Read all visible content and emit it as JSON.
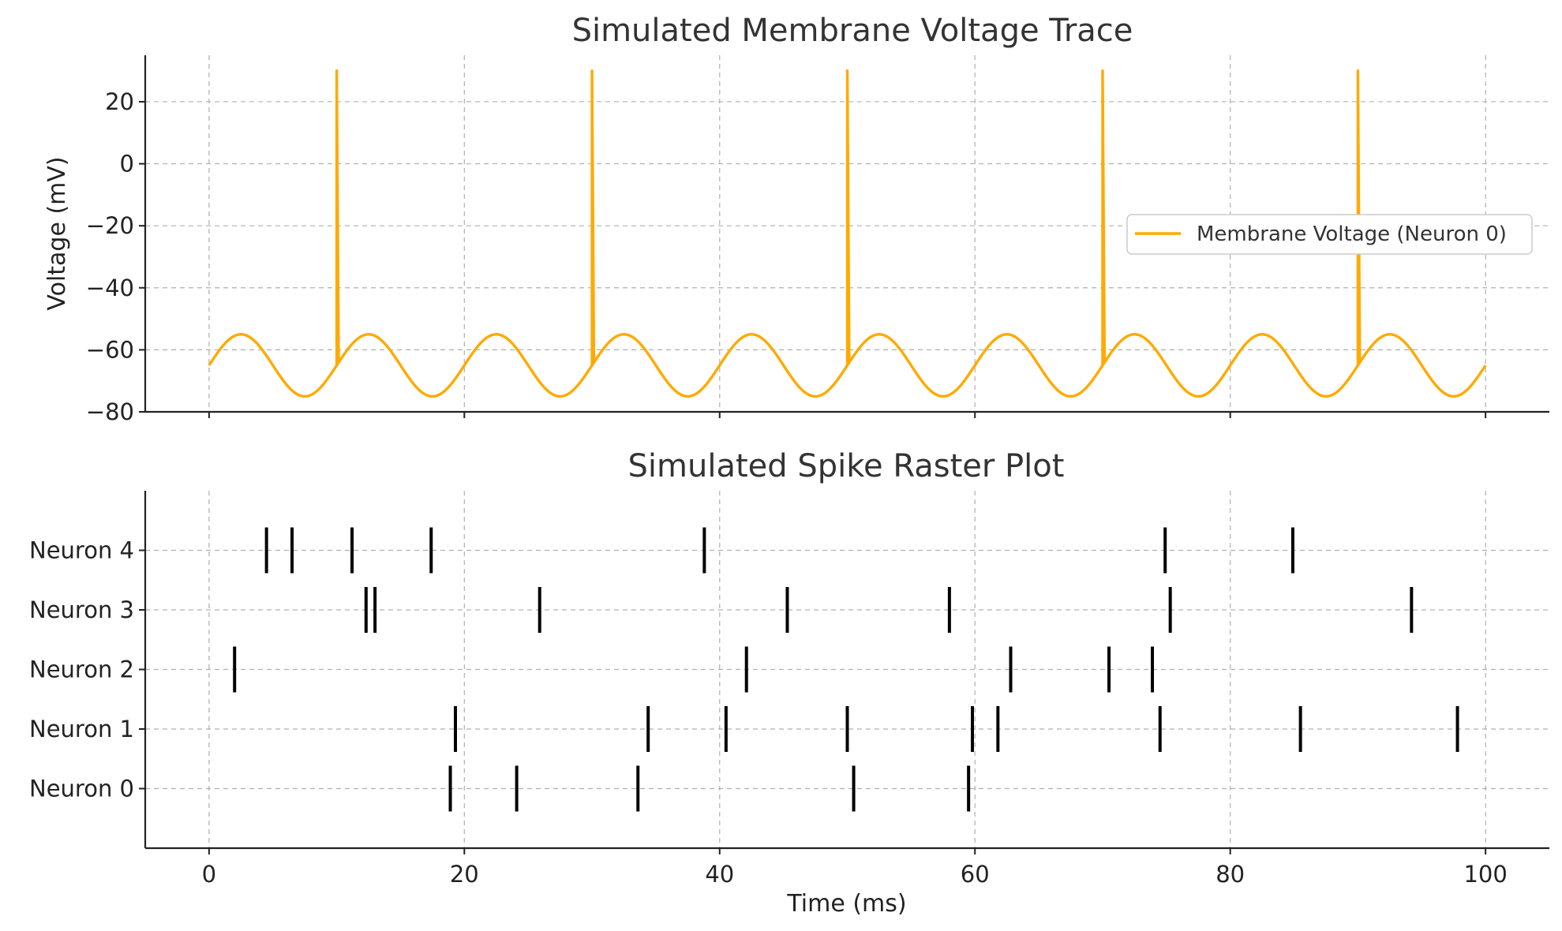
{
  "chart_data": [
    {
      "type": "line",
      "title": "Simulated Membrane Voltage Trace",
      "xlabel": "",
      "ylabel": "Voltage (mV)",
      "xlim": [
        -5,
        105
      ],
      "ylim": [
        -80,
        35
      ],
      "xticks": [
        0,
        20,
        40,
        60,
        80,
        100
      ],
      "yticks": [
        -80,
        -60,
        -40,
        -20,
        0,
        20
      ],
      "ytick_labels": [
        "−80",
        "−60",
        "−40",
        "−20",
        "0",
        "20"
      ],
      "x_tick_labels_shown": false,
      "grid": true,
      "legend_position": "center-right",
      "series": [
        {
          "name": "Membrane Voltage (Neuron 0)",
          "color": "#FFAA00",
          "model": {
            "baseline": -65,
            "amplitude": 10,
            "period_ms": 10,
            "spike_times_ms": [
              10,
              30,
              50,
              70,
              90
            ],
            "spike_peak_mv": 30
          },
          "x": [
            0,
            2.5,
            5,
            7.5,
            10,
            10,
            10.2,
            12.5,
            15,
            17.5,
            20,
            22.5,
            25,
            27.5,
            30,
            30,
            30.2,
            32.5,
            35,
            37.5,
            40,
            42.5,
            45,
            47.5,
            50,
            50,
            50.2,
            52.5,
            55,
            57.5,
            60,
            62.5,
            65,
            67.5,
            70,
            70,
            70.2,
            72.5,
            75,
            77.5,
            80,
            82.5,
            85,
            87.5,
            90,
            90,
            90.2,
            92.5,
            95,
            97.5,
            100
          ],
          "y": [
            -65,
            -55,
            -65,
            -75,
            -65,
            30,
            -64,
            -55,
            -65,
            -75,
            -65,
            -55,
            -65,
            -75,
            -65,
            30,
            -64,
            -55,
            -65,
            -75,
            -65,
            -55,
            -65,
            -75,
            -65,
            30,
            -64,
            -55,
            -65,
            -75,
            -65,
            -55,
            -65,
            -75,
            -65,
            30,
            -64,
            -55,
            -65,
            -75,
            -65,
            -55,
            -65,
            -75,
            -65,
            30,
            -64,
            -55,
            -65,
            -75,
            -65
          ]
        }
      ]
    },
    {
      "type": "scatter",
      "title": "Simulated Spike Raster Plot",
      "xlabel": "Time (ms)",
      "ylabel": "",
      "xlim": [
        -5,
        105
      ],
      "ylim": [
        -1,
        5
      ],
      "xticks": [
        0,
        20,
        40,
        60,
        80,
        100
      ],
      "grid": true,
      "marker": "vertical-line",
      "marker_color": "#000000",
      "categories": [
        "Neuron 0",
        "Neuron 1",
        "Neuron 2",
        "Neuron 3",
        "Neuron 4"
      ],
      "spike_trains": [
        [
          18.9,
          24.1,
          33.6,
          50.5,
          59.5
        ],
        [
          19.3,
          34.4,
          40.5,
          50.0,
          59.8,
          61.8,
          74.5,
          85.5,
          97.8
        ],
        [
          2.0,
          42.1,
          62.8,
          70.5,
          73.9
        ],
        [
          12.3,
          13.0,
          25.9,
          45.3,
          58.0,
          75.3,
          94.2
        ],
        [
          4.5,
          6.5,
          11.2,
          17.4,
          38.8,
          74.9,
          84.9
        ]
      ]
    }
  ]
}
